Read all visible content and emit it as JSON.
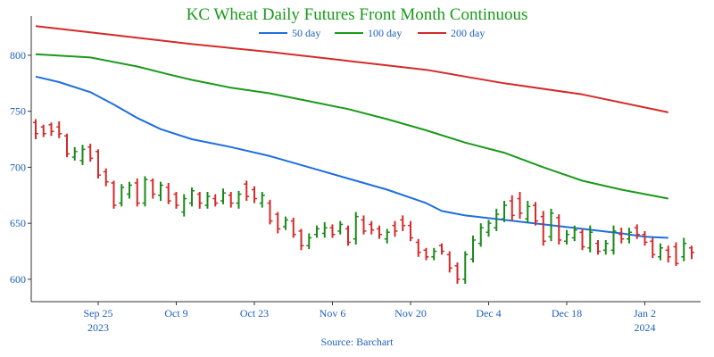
{
  "chart_data": {
    "type": "line",
    "title": "KC Wheat Daily Futures Front Month Continuous",
    "source": "Source: Barchart",
    "xlabel": "",
    "ylabel": "",
    "ylim": [
      580,
      835
    ],
    "y_ticks": [
      600,
      650,
      700,
      750,
      800
    ],
    "x_ticks": [
      {
        "label": "Sep 25",
        "sublabel": "2023",
        "x": 8
      },
      {
        "label": "Oct 9",
        "sublabel": "",
        "x": 18
      },
      {
        "label": "Oct 23",
        "sublabel": "",
        "x": 28
      },
      {
        "label": "Nov 6",
        "sublabel": "",
        "x": 38
      },
      {
        "label": "Nov 20",
        "sublabel": "",
        "x": 48
      },
      {
        "label": "Dec 4",
        "sublabel": "",
        "x": 58
      },
      {
        "label": "Dec 18",
        "sublabel": "",
        "x": 68
      },
      {
        "label": "Jan 2",
        "sublabel": "2024",
        "x": 78
      }
    ],
    "x_range": [
      0,
      82
    ],
    "legend": {
      "placement": "top-center",
      "entries": [
        "50 day",
        "100 day",
        "200 day"
      ]
    },
    "colors": {
      "title": "#1a9a1a",
      "axis": "#333333",
      "tick_text": "#1f5fbf",
      "up": "#1a8a1a",
      "down": "#d42a2a"
    },
    "series": [
      {
        "name": "50 day",
        "color": "#1f6fdc",
        "x": [
          0,
          3,
          7,
          10,
          13,
          16,
          20,
          25,
          30,
          35,
          40,
          45,
          50,
          52,
          55,
          60,
          65,
          70,
          75,
          78,
          81
        ],
        "values": [
          781,
          776,
          767,
          756,
          744,
          734,
          725,
          718,
          710,
          700,
          690,
          680,
          668,
          661,
          657,
          653,
          649,
          645,
          641,
          638,
          637
        ]
      },
      {
        "name": "100 day",
        "color": "#1a9a1a",
        "x": [
          0,
          7,
          13,
          17,
          20,
          25,
          30,
          35,
          40,
          45,
          50,
          55,
          60,
          65,
          70,
          75,
          81
        ],
        "values": [
          801,
          798,
          790,
          783,
          778,
          771,
          766,
          759,
          752,
          743,
          733,
          722,
          713,
          700,
          688,
          680,
          672
        ]
      },
      {
        "name": "200 day",
        "color": "#d42a2a",
        "x": [
          0,
          10,
          20,
          30,
          40,
          50,
          55,
          60,
          70,
          81
        ],
        "values": [
          826,
          818,
          810,
          803,
          795,
          787,
          781,
          775,
          765,
          749
        ]
      }
    ],
    "bars": [
      {
        "x": 0,
        "high": 743,
        "low": 725,
        "open": 740,
        "close": 730,
        "dir": "down"
      },
      {
        "x": 1,
        "high": 738,
        "low": 727,
        "open": 736,
        "close": 730,
        "dir": "down"
      },
      {
        "x": 2,
        "high": 740,
        "low": 728,
        "open": 738,
        "close": 732,
        "dir": "down"
      },
      {
        "x": 3,
        "high": 741,
        "low": 726,
        "open": 736,
        "close": 730,
        "dir": "down"
      },
      {
        "x": 4,
        "high": 730,
        "low": 709,
        "open": 728,
        "close": 712,
        "dir": "down"
      },
      {
        "x": 5,
        "high": 718,
        "low": 706,
        "open": 709,
        "close": 714,
        "dir": "up"
      },
      {
        "x": 6,
        "high": 720,
        "low": 702,
        "open": 706,
        "close": 716,
        "dir": "up"
      },
      {
        "x": 7,
        "high": 721,
        "low": 705,
        "open": 718,
        "close": 708,
        "dir": "down"
      },
      {
        "x": 8,
        "high": 716,
        "low": 690,
        "open": 714,
        "close": 693,
        "dir": "down"
      },
      {
        "x": 9,
        "high": 699,
        "low": 683,
        "open": 696,
        "close": 687,
        "dir": "down"
      },
      {
        "x": 10,
        "high": 688,
        "low": 663,
        "open": 686,
        "close": 666,
        "dir": "down"
      },
      {
        "x": 11,
        "high": 685,
        "low": 665,
        "open": 668,
        "close": 682,
        "dir": "up"
      },
      {
        "x": 12,
        "high": 687,
        "low": 672,
        "open": 676,
        "close": 684,
        "dir": "up"
      },
      {
        "x": 13,
        "high": 690,
        "low": 665,
        "open": 686,
        "close": 668,
        "dir": "down"
      },
      {
        "x": 14,
        "high": 692,
        "low": 665,
        "open": 668,
        "close": 689,
        "dir": "up"
      },
      {
        "x": 15,
        "high": 690,
        "low": 672,
        "open": 688,
        "close": 676,
        "dir": "down"
      },
      {
        "x": 16,
        "high": 687,
        "low": 670,
        "open": 675,
        "close": 684,
        "dir": "up"
      },
      {
        "x": 17,
        "high": 686,
        "low": 667,
        "open": 682,
        "close": 670,
        "dir": "down"
      },
      {
        "x": 18,
        "high": 678,
        "low": 663,
        "open": 676,
        "close": 666,
        "dir": "down"
      },
      {
        "x": 19,
        "high": 676,
        "low": 656,
        "open": 660,
        "close": 672,
        "dir": "up"
      },
      {
        "x": 20,
        "high": 682,
        "low": 665,
        "open": 668,
        "close": 679,
        "dir": "up"
      },
      {
        "x": 21,
        "high": 678,
        "low": 663,
        "open": 676,
        "close": 668,
        "dir": "down"
      },
      {
        "x": 22,
        "high": 678,
        "low": 663,
        "open": 666,
        "close": 674,
        "dir": "up"
      },
      {
        "x": 23,
        "high": 676,
        "low": 665,
        "open": 672,
        "close": 668,
        "dir": "down"
      },
      {
        "x": 24,
        "high": 681,
        "low": 667,
        "open": 670,
        "close": 677,
        "dir": "up"
      },
      {
        "x": 25,
        "high": 678,
        "low": 664,
        "open": 675,
        "close": 668,
        "dir": "down"
      },
      {
        "x": 26,
        "high": 679,
        "low": 663,
        "open": 668,
        "close": 676,
        "dir": "up"
      },
      {
        "x": 27,
        "high": 688,
        "low": 670,
        "open": 685,
        "close": 674,
        "dir": "down"
      },
      {
        "x": 28,
        "high": 683,
        "low": 668,
        "open": 680,
        "close": 672,
        "dir": "down"
      },
      {
        "x": 29,
        "high": 678,
        "low": 664,
        "open": 668,
        "close": 675,
        "dir": "up"
      },
      {
        "x": 30,
        "high": 671,
        "low": 649,
        "open": 668,
        "close": 652,
        "dir": "down"
      },
      {
        "x": 31,
        "high": 660,
        "low": 641,
        "open": 658,
        "close": 645,
        "dir": "down"
      },
      {
        "x": 32,
        "high": 656,
        "low": 644,
        "open": 647,
        "close": 653,
        "dir": "up"
      },
      {
        "x": 33,
        "high": 655,
        "low": 637,
        "open": 652,
        "close": 640,
        "dir": "down"
      },
      {
        "x": 34,
        "high": 645,
        "low": 626,
        "open": 643,
        "close": 630,
        "dir": "down"
      },
      {
        "x": 35,
        "high": 641,
        "low": 627,
        "open": 630,
        "close": 637,
        "dir": "up"
      },
      {
        "x": 36,
        "high": 648,
        "low": 637,
        "open": 640,
        "close": 645,
        "dir": "up"
      },
      {
        "x": 37,
        "high": 651,
        "low": 637,
        "open": 641,
        "close": 646,
        "dir": "up"
      },
      {
        "x": 38,
        "high": 649,
        "low": 637,
        "open": 646,
        "close": 640,
        "dir": "down"
      },
      {
        "x": 39,
        "high": 652,
        "low": 640,
        "open": 643,
        "close": 649,
        "dir": "up"
      },
      {
        "x": 40,
        "high": 648,
        "low": 630,
        "open": 645,
        "close": 633,
        "dir": "down"
      },
      {
        "x": 41,
        "high": 660,
        "low": 631,
        "open": 636,
        "close": 656,
        "dir": "up"
      },
      {
        "x": 42,
        "high": 657,
        "low": 640,
        "open": 653,
        "close": 643,
        "dir": "down"
      },
      {
        "x": 43,
        "high": 652,
        "low": 640,
        "open": 649,
        "close": 644,
        "dir": "down"
      },
      {
        "x": 44,
        "high": 648,
        "low": 636,
        "open": 645,
        "close": 640,
        "dir": "down"
      },
      {
        "x": 45,
        "high": 645,
        "low": 632,
        "open": 636,
        "close": 642,
        "dir": "up"
      },
      {
        "x": 46,
        "high": 652,
        "low": 638,
        "open": 648,
        "close": 643,
        "dir": "down"
      },
      {
        "x": 47,
        "high": 657,
        "low": 643,
        "open": 653,
        "close": 648,
        "dir": "down"
      },
      {
        "x": 48,
        "high": 652,
        "low": 634,
        "open": 648,
        "close": 637,
        "dir": "down"
      },
      {
        "x": 49,
        "high": 636,
        "low": 620,
        "open": 633,
        "close": 624,
        "dir": "down"
      },
      {
        "x": 50,
        "high": 628,
        "low": 617,
        "open": 626,
        "close": 620,
        "dir": "down"
      },
      {
        "x": 51,
        "high": 628,
        "low": 617,
        "open": 620,
        "close": 625,
        "dir": "up"
      },
      {
        "x": 52,
        "high": 632,
        "low": 622,
        "open": 630,
        "close": 625,
        "dir": "down"
      },
      {
        "x": 53,
        "high": 625,
        "low": 606,
        "open": 622,
        "close": 610,
        "dir": "down"
      },
      {
        "x": 54,
        "high": 615,
        "low": 596,
        "open": 612,
        "close": 600,
        "dir": "down"
      },
      {
        "x": 55,
        "high": 625,
        "low": 596,
        "open": 600,
        "close": 622,
        "dir": "up"
      },
      {
        "x": 56,
        "high": 639,
        "low": 615,
        "open": 618,
        "close": 635,
        "dir": "up"
      },
      {
        "x": 57,
        "high": 650,
        "low": 629,
        "open": 632,
        "close": 646,
        "dir": "up"
      },
      {
        "x": 58,
        "high": 653,
        "low": 638,
        "open": 642,
        "close": 650,
        "dir": "up"
      },
      {
        "x": 59,
        "high": 663,
        "low": 643,
        "open": 646,
        "close": 658,
        "dir": "up"
      },
      {
        "x": 60,
        "high": 670,
        "low": 651,
        "open": 654,
        "close": 666,
        "dir": "up"
      },
      {
        "x": 61,
        "high": 675,
        "low": 652,
        "open": 670,
        "close": 657,
        "dir": "down"
      },
      {
        "x": 62,
        "high": 678,
        "low": 654,
        "open": 672,
        "close": 659,
        "dir": "down"
      },
      {
        "x": 63,
        "high": 670,
        "low": 650,
        "open": 654,
        "close": 665,
        "dir": "up"
      },
      {
        "x": 64,
        "high": 669,
        "low": 648,
        "open": 666,
        "close": 652,
        "dir": "down"
      },
      {
        "x": 65,
        "high": 661,
        "low": 630,
        "open": 656,
        "close": 634,
        "dir": "down"
      },
      {
        "x": 66,
        "high": 663,
        "low": 634,
        "open": 638,
        "close": 659,
        "dir": "up"
      },
      {
        "x": 67,
        "high": 658,
        "low": 631,
        "open": 655,
        "close": 635,
        "dir": "down"
      },
      {
        "x": 68,
        "high": 644,
        "low": 631,
        "open": 634,
        "close": 640,
        "dir": "up"
      },
      {
        "x": 69,
        "high": 648,
        "low": 634,
        "open": 637,
        "close": 644,
        "dir": "up"
      },
      {
        "x": 70,
        "high": 645,
        "low": 626,
        "open": 642,
        "close": 629,
        "dir": "down"
      },
      {
        "x": 71,
        "high": 648,
        "low": 624,
        "open": 628,
        "close": 642,
        "dir": "up"
      },
      {
        "x": 72,
        "high": 635,
        "low": 622,
        "open": 632,
        "close": 625,
        "dir": "down"
      },
      {
        "x": 73,
        "high": 635,
        "low": 622,
        "open": 626,
        "close": 632,
        "dir": "up"
      },
      {
        "x": 74,
        "high": 648,
        "low": 622,
        "open": 626,
        "close": 643,
        "dir": "up"
      },
      {
        "x": 75,
        "high": 646,
        "low": 632,
        "open": 640,
        "close": 636,
        "dir": "down"
      },
      {
        "x": 76,
        "high": 646,
        "low": 632,
        "open": 636,
        "close": 642,
        "dir": "up"
      },
      {
        "x": 77,
        "high": 649,
        "low": 636,
        "open": 646,
        "close": 640,
        "dir": "down"
      },
      {
        "x": 78,
        "high": 643,
        "low": 630,
        "open": 640,
        "close": 633,
        "dir": "down"
      },
      {
        "x": 79,
        "high": 637,
        "low": 619,
        "open": 634,
        "close": 622,
        "dir": "down"
      },
      {
        "x": 80,
        "high": 632,
        "low": 617,
        "open": 620,
        "close": 628,
        "dir": "up"
      },
      {
        "x": 81,
        "high": 630,
        "low": 615,
        "open": 626,
        "close": 620,
        "dir": "down"
      },
      {
        "x": 82,
        "high": 633,
        "low": 612,
        "open": 629,
        "close": 614,
        "dir": "down"
      },
      {
        "x": 83,
        "high": 637,
        "low": 616,
        "open": 620,
        "close": 632,
        "dir": "up"
      },
      {
        "x": 84,
        "high": 630,
        "low": 618,
        "open": 628,
        "close": 624,
        "dir": "down"
      }
    ]
  }
}
